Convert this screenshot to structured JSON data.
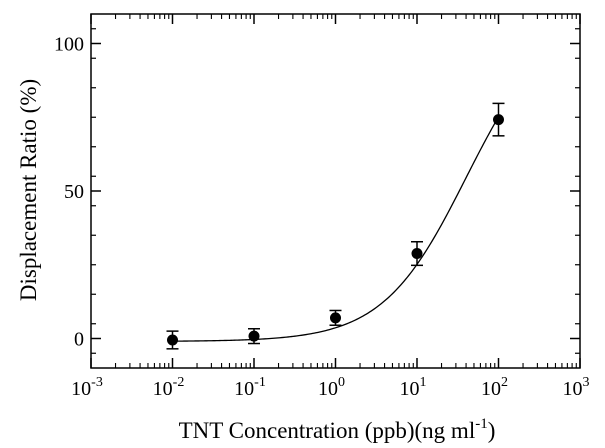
{
  "chart_data": {
    "type": "scatter",
    "title": "",
    "xlabel": "TNT Concentration (ppb)(ng ml",
    "xlabel_superscript": "-1",
    "xlabel_suffix": ")",
    "ylabel": "Displacement Ratio (%)",
    "x_scale": "log",
    "x_ticks": [
      {
        "base": "10",
        "exp": "-3",
        "value": 0.001
      },
      {
        "base": "10",
        "exp": "-2",
        "value": 0.01
      },
      {
        "base": "10",
        "exp": "-1",
        "value": 0.1
      },
      {
        "base": "10",
        "exp": "0",
        "value": 1
      },
      {
        "base": "10",
        "exp": "1",
        "value": 10
      },
      {
        "base": "10",
        "exp": "2",
        "value": 100
      },
      {
        "base": "10",
        "exp": "3",
        "value": 1000
      }
    ],
    "xlim": [
      0.001,
      1000
    ],
    "y_ticks": [
      "0",
      "50",
      "100"
    ],
    "ylim": [
      -10,
      110
    ],
    "grid": false,
    "marker_color": "#000000",
    "series": [
      {
        "x": [
          0.01,
          0.1,
          1,
          10,
          100
        ],
        "y": [
          -0.5,
          0.8,
          7,
          28.8,
          74.2
        ],
        "err_low": [
          3,
          2.5,
          2.5,
          4,
          5.5
        ],
        "err_high": [
          3,
          2.5,
          2.5,
          4,
          5.5
        ]
      }
    ],
    "fit_curve": {
      "type": "hill",
      "bottom": -1,
      "top": 110,
      "ec50": 40,
      "hill_slope": 0.85
    }
  }
}
